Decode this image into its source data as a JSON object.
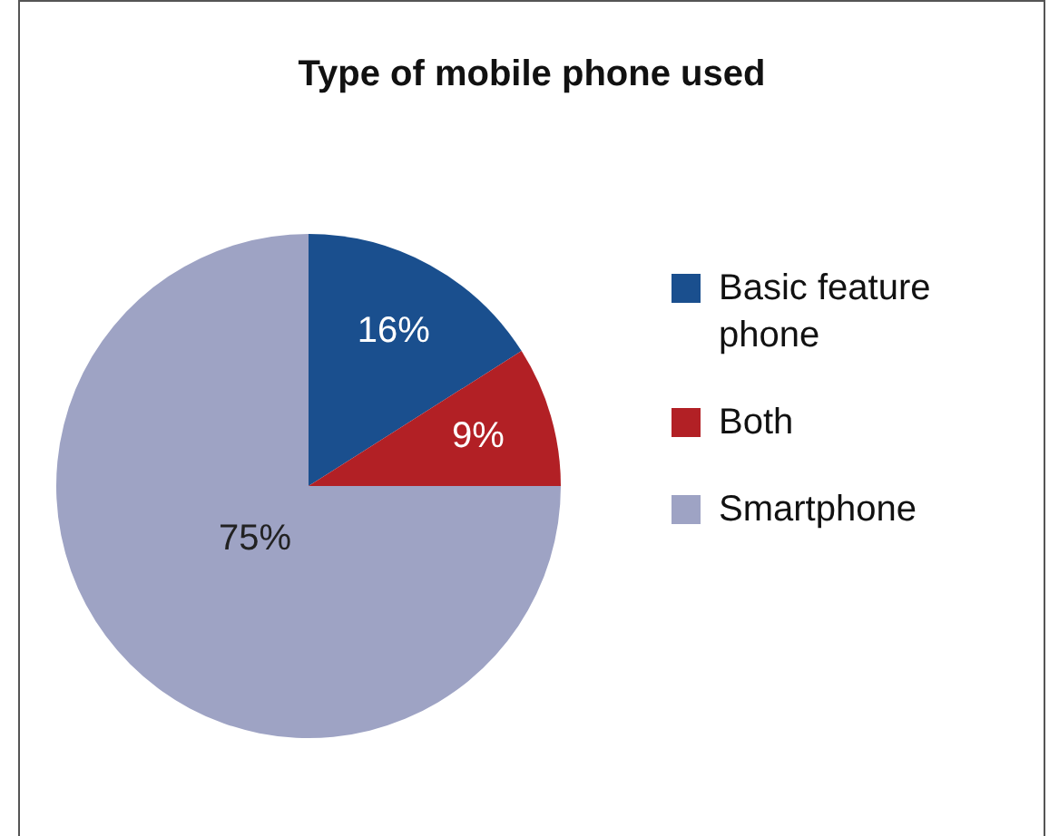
{
  "chart_data": {
    "type": "pie",
    "title": "Type of mobile phone used",
    "categories": [
      "Basic feature phone",
      "Both",
      "Smartphone"
    ],
    "values": [
      16,
      9,
      75
    ],
    "colors": [
      "#1a4f8e",
      "#b22025",
      "#9ea3c4"
    ],
    "value_labels": [
      "16%",
      "9%",
      "75%"
    ],
    "legend": "right"
  }
}
